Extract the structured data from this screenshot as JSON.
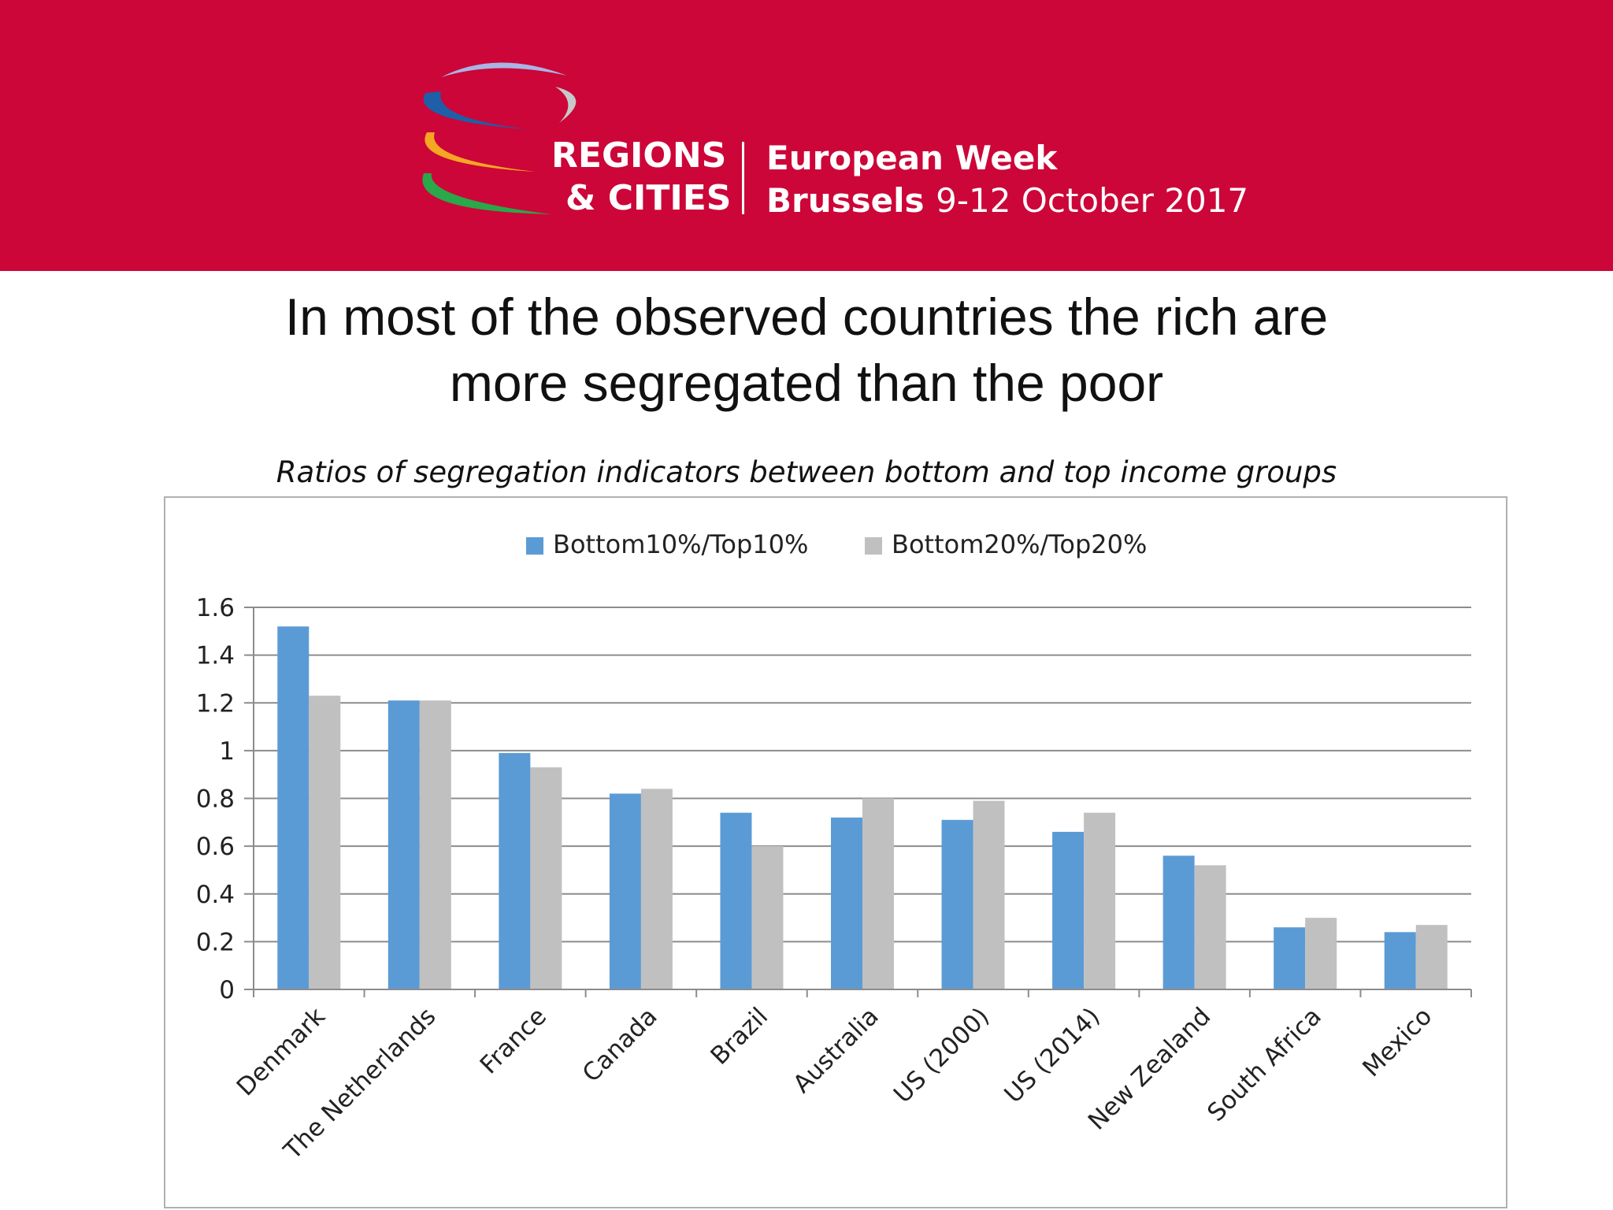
{
  "header": {
    "logo_line1": "REGIONS",
    "logo_line2": "& CITIES",
    "event_line1": "European Week",
    "event_city": "Brussels",
    "event_dates": "9-12 October 2017"
  },
  "colors": {
    "banner": "#cc0638",
    "series1": "#5b9bd5",
    "series2": "#c0c0c0",
    "logo_blue_dark": "#1f5fa8",
    "logo_lavender": "#a9b4e6",
    "logo_grey": "#c8c8c8",
    "logo_orange": "#f5a623",
    "logo_green": "#2aa84a"
  },
  "slide": {
    "title_line1": "In most of the observed countries the rich are",
    "title_line2": "more segregated than the poor",
    "subtitle": "Ratios of segregation indicators between bottom and top income groups"
  },
  "chart_data": {
    "type": "bar",
    "categories": [
      "Denmark",
      "The Netherlands",
      "France",
      "Canada",
      "Brazil",
      "Australia",
      "US (2000)",
      "US (2014)",
      "New Zealand",
      "South Africa",
      "Mexico"
    ],
    "series": [
      {
        "name": "Bottom10%/Top10%",
        "values": [
          1.52,
          1.21,
          0.99,
          0.82,
          0.74,
          0.72,
          0.71,
          0.66,
          0.56,
          0.26,
          0.24
        ]
      },
      {
        "name": "Bottom20%/Top20%",
        "values": [
          1.23,
          1.21,
          0.93,
          0.84,
          0.6,
          0.8,
          0.79,
          0.74,
          0.52,
          0.3,
          0.27
        ]
      }
    ],
    "ylim": [
      0,
      1.6
    ],
    "yticks": [
      "0",
      "0.2",
      "0.4",
      "0.6",
      "0.8",
      "1",
      "1.2",
      "1.4",
      "1.6"
    ],
    "grid": true,
    "legend": "top-center"
  }
}
